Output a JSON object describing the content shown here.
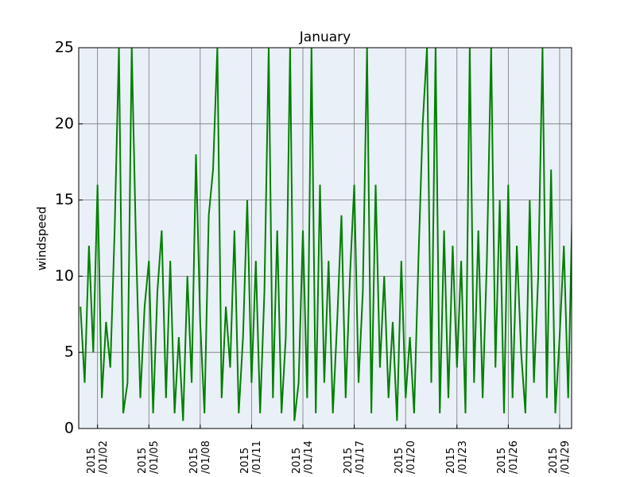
{
  "chart_data": {
    "type": "line",
    "title": "January",
    "y_label": "windspeed",
    "color": "#008000",
    "background": "#eaf0f7",
    "grid": true,
    "xlim": [
      0.9,
      29.7
    ],
    "ylim": [
      0,
      25
    ],
    "xticks": [
      {
        "value": 2,
        "label": "2015\n/01/02"
      },
      {
        "value": 5,
        "label": "2015\n/01/05"
      },
      {
        "value": 8,
        "label": "2015\n/01/08"
      },
      {
        "value": 11,
        "label": "2015\n/01/11"
      },
      {
        "value": 14,
        "label": "2015\n/01/14"
      },
      {
        "value": 17,
        "label": "2015\n/01/17"
      },
      {
        "value": 20,
        "label": "2015\n/01/20"
      },
      {
        "value": 23,
        "label": "2015\n/01/23"
      },
      {
        "value": 26,
        "label": "2015\n/01/26"
      },
      {
        "value": 29,
        "label": "2015\n/01/29"
      }
    ],
    "yticks": [
      0,
      5,
      10,
      15,
      20,
      25
    ],
    "x": [
      1,
      1.25,
      1.5,
      1.75,
      2,
      2.25,
      2.5,
      2.75,
      3,
      3.25,
      3.5,
      3.75,
      4,
      4.25,
      4.5,
      4.75,
      5,
      5.25,
      5.5,
      5.75,
      6,
      6.25,
      6.5,
      6.75,
      7,
      7.25,
      7.5,
      7.75,
      8,
      8.25,
      8.5,
      8.75,
      9,
      9.25,
      9.5,
      9.75,
      10,
      10.25,
      10.5,
      10.75,
      11,
      11.25,
      11.5,
      11.75,
      12,
      12.25,
      12.5,
      12.75,
      13,
      13.25,
      13.5,
      13.75,
      14,
      14.25,
      14.5,
      14.75,
      15,
      15.25,
      15.5,
      15.75,
      16,
      16.25,
      16.5,
      16.75,
      17,
      17.25,
      17.5,
      17.75,
      18,
      18.25,
      18.5,
      18.75,
      19,
      19.25,
      19.5,
      19.75,
      20,
      20.25,
      20.5,
      20.75,
      21,
      21.25,
      21.5,
      21.75,
      22,
      22.25,
      22.5,
      22.75,
      23,
      23.25,
      23.5,
      23.75,
      24,
      24.25,
      24.5,
      24.75,
      25,
      25.25,
      25.5,
      25.75,
      26,
      26.25,
      26.5,
      26.75,
      27,
      27.25,
      27.5,
      27.75,
      28,
      28.25,
      28.5,
      28.75,
      29,
      29.25,
      29.5,
      29.75
    ],
    "values": [
      8,
      3,
      12,
      5,
      16,
      2,
      7,
      4,
      13,
      25,
      1,
      3,
      25,
      12,
      2,
      8,
      11,
      1,
      9,
      13,
      2,
      11,
      1,
      6,
      0.5,
      10,
      3,
      18,
      7,
      1,
      14,
      17,
      25,
      2,
      8,
      4,
      13,
      1,
      6,
      15,
      3,
      11,
      1,
      9,
      25,
      2,
      13,
      1,
      6,
      25,
      0.5,
      3,
      13,
      2,
      25,
      1,
      16,
      3,
      11,
      1,
      7,
      14,
      2,
      10,
      16,
      3,
      9,
      25,
      1,
      16,
      4,
      10,
      2,
      7,
      0.5,
      11,
      2,
      6,
      1,
      11,
      20,
      25,
      3,
      25,
      1,
      13,
      2,
      12,
      4,
      11,
      1,
      25,
      3,
      13,
      2,
      11,
      25,
      4,
      15,
      1,
      16,
      2,
      12,
      5,
      1,
      15,
      3,
      10,
      25,
      2,
      17,
      1,
      6,
      12,
      2,
      15
    ]
  }
}
